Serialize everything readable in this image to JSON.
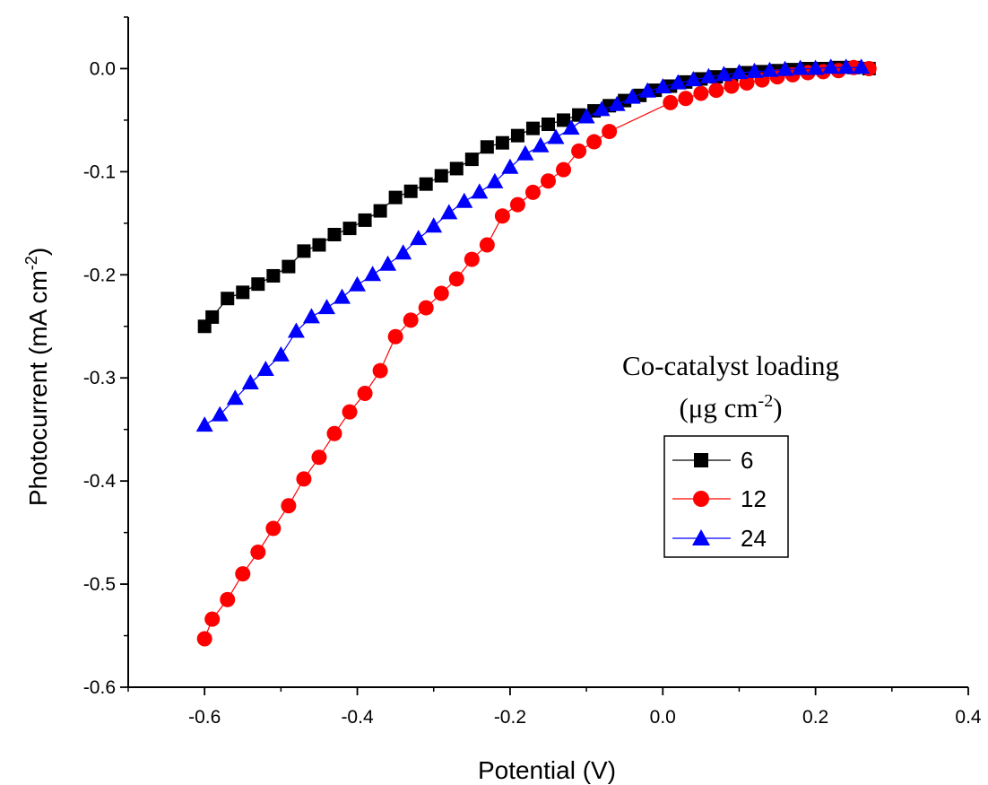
{
  "chart_data": {
    "type": "line",
    "xlabel": "Potential (V)",
    "ylabel": "Photocurrent (mA cm",
    "ylabel_sup": "-2",
    "ylabel_tail": ")",
    "xlim": [
      -0.7,
      0.4
    ],
    "ylim": [
      -0.6,
      0.05
    ],
    "xticks": [
      -0.6,
      -0.4,
      -0.2,
      0.0,
      0.2,
      0.4
    ],
    "xtick_labels": [
      "-0.6",
      "-0.4",
      "-0.2",
      "0.0",
      "0.2",
      "0.4"
    ],
    "yticks": [
      0.0,
      -0.1,
      -0.2,
      -0.3,
      -0.4,
      -0.5,
      -0.6
    ],
    "ytick_labels": [
      "0.0",
      "-0.1",
      "-0.2",
      "-0.3",
      "-0.4",
      "-0.5",
      "-0.6"
    ],
    "grid": false,
    "legend_title_line1": "Co-catalyst loading",
    "legend_title_line2_prefix": "(μg cm",
    "legend_title_line2_sup": "-2",
    "legend_title_line2_suffix": ")",
    "legend_position": "right",
    "series": [
      {
        "name": "6",
        "color": "#000000",
        "marker": "square",
        "x": [
          -0.6,
          -0.59,
          -0.57,
          -0.55,
          -0.53,
          -0.51,
          -0.49,
          -0.47,
          -0.45,
          -0.43,
          -0.41,
          -0.39,
          -0.37,
          -0.35,
          -0.33,
          -0.31,
          -0.29,
          -0.27,
          -0.25,
          -0.23,
          -0.21,
          -0.19,
          -0.17,
          -0.15,
          -0.13,
          -0.11,
          -0.09,
          -0.07,
          -0.05,
          -0.03,
          -0.01,
          0.01,
          0.03,
          0.05,
          0.07,
          0.09,
          0.11,
          0.13,
          0.15,
          0.17,
          0.19,
          0.21,
          0.23,
          0.25,
          0.27
        ],
        "y": [
          -0.25,
          -0.241,
          -0.223,
          -0.217,
          -0.209,
          -0.201,
          -0.192,
          -0.177,
          -0.171,
          -0.161,
          -0.155,
          -0.147,
          -0.138,
          -0.125,
          -0.119,
          -0.112,
          -0.104,
          -0.097,
          -0.088,
          -0.076,
          -0.072,
          -0.065,
          -0.058,
          -0.054,
          -0.05,
          -0.045,
          -0.041,
          -0.036,
          -0.031,
          -0.026,
          -0.021,
          -0.017,
          -0.013,
          -0.01,
          -0.008,
          -0.006,
          -0.004,
          -0.003,
          -0.002,
          -0.001,
          0.0,
          0.0,
          0.001,
          0.001,
          0.0
        ]
      },
      {
        "name": "12",
        "color": "#ff0000",
        "marker": "circle",
        "x": [
          -0.6,
          -0.59,
          -0.57,
          -0.55,
          -0.53,
          -0.51,
          -0.49,
          -0.47,
          -0.45,
          -0.43,
          -0.41,
          -0.39,
          -0.37,
          -0.35,
          -0.33,
          -0.31,
          -0.29,
          -0.27,
          -0.25,
          -0.23,
          -0.21,
          -0.19,
          -0.17,
          -0.15,
          -0.13,
          -0.11,
          -0.09,
          -0.07,
          0.01,
          0.03,
          0.05,
          0.07,
          0.09,
          0.11,
          0.13,
          0.15,
          0.17,
          0.19,
          0.21,
          0.23,
          0.25,
          0.27
        ],
        "y": [
          -0.553,
          -0.534,
          -0.515,
          -0.49,
          -0.469,
          -0.446,
          -0.424,
          -0.398,
          -0.377,
          -0.354,
          -0.333,
          -0.315,
          -0.293,
          -0.26,
          -0.244,
          -0.232,
          -0.218,
          -0.204,
          -0.185,
          -0.171,
          -0.143,
          -0.132,
          -0.12,
          -0.109,
          -0.098,
          -0.08,
          -0.071,
          -0.061,
          -0.033,
          -0.029,
          -0.024,
          -0.021,
          -0.017,
          -0.014,
          -0.011,
          -0.008,
          -0.006,
          -0.004,
          -0.003,
          -0.002,
          0.001,
          0.0
        ]
      },
      {
        "name": "24",
        "color": "#0000ff",
        "marker": "triangle",
        "x": [
          -0.6,
          -0.58,
          -0.56,
          -0.54,
          -0.52,
          -0.5,
          -0.48,
          -0.46,
          -0.44,
          -0.42,
          -0.4,
          -0.38,
          -0.36,
          -0.34,
          -0.32,
          -0.3,
          -0.28,
          -0.26,
          -0.24,
          -0.22,
          -0.2,
          -0.18,
          -0.16,
          -0.14,
          -0.12,
          -0.1,
          -0.08,
          -0.06,
          -0.04,
          -0.02,
          0.0,
          0.02,
          0.04,
          0.06,
          0.08,
          0.1,
          0.12,
          0.14,
          0.16,
          0.18,
          0.2,
          0.22,
          0.24,
          0.26
        ],
        "y": [
          -0.346,
          -0.336,
          -0.32,
          -0.305,
          -0.292,
          -0.278,
          -0.255,
          -0.241,
          -0.232,
          -0.222,
          -0.21,
          -0.2,
          -0.19,
          -0.179,
          -0.165,
          -0.153,
          -0.14,
          -0.129,
          -0.12,
          -0.11,
          -0.096,
          -0.083,
          -0.075,
          -0.067,
          -0.058,
          -0.047,
          -0.04,
          -0.035,
          -0.028,
          -0.022,
          -0.018,
          -0.014,
          -0.011,
          -0.008,
          -0.006,
          -0.004,
          -0.003,
          -0.002,
          -0.001,
          0.0,
          0.0,
          0.001,
          0.001,
          0.001
        ]
      }
    ]
  }
}
